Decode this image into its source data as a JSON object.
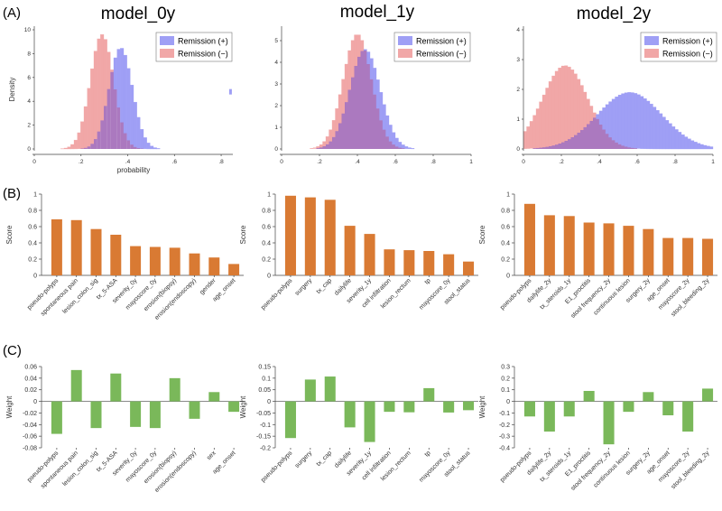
{
  "figure": {
    "row_labels": [
      "(A)",
      "(B)",
      "(C)"
    ],
    "model_titles": [
      "model_0y",
      "model_1y",
      "model_2y"
    ]
  },
  "colors": {
    "remission_pos": "#9f9ff5",
    "remission_neg": "#f1a7a7",
    "overlap": "#9c62b4",
    "score_bar": "#d97a33",
    "weight_bar": "#7ab85a",
    "extra_mark": "#9f9ff5"
  },
  "chart_data": [
    {
      "type": "histogram",
      "model": "model_0y",
      "row": "A",
      "xlabel": "probability",
      "ylabel": "Density",
      "xlim": [
        0,
        0.85
      ],
      "ylim": [
        0,
        10
      ],
      "xticks": [
        0,
        0.2,
        0.4,
        0.6,
        0.8
      ],
      "xtick_labels": [
        "0",
        ".2",
        ".4",
        ".6",
        ".8"
      ],
      "yticks": [
        0,
        2,
        4,
        6,
        8,
        10
      ],
      "legend": [
        "Remission (+)",
        "Remission (−)"
      ],
      "series": [
        {
          "name": "Remission (+)",
          "mean": 0.37,
          "sd": 0.05,
          "peak": 8.5
        },
        {
          "name": "Remission (−)",
          "mean": 0.29,
          "sd": 0.05,
          "peak": 9.6
        }
      ],
      "outlier": {
        "x": 0.84,
        "y": 4.8
      }
    },
    {
      "type": "histogram",
      "model": "model_1y",
      "row": "A",
      "xlabel": "",
      "ylabel": "",
      "xlim": [
        0,
        1
      ],
      "ylim": [
        0,
        5.5
      ],
      "xticks": [
        0,
        0.2,
        0.4,
        0.6,
        0.8,
        1
      ],
      "xtick_labels": [
        "0",
        ".2",
        ".4",
        ".6",
        ".8",
        "1"
      ],
      "yticks": [
        0,
        1,
        2,
        3,
        4,
        5
      ],
      "legend": [
        "Remission (+)",
        "Remission (−)"
      ],
      "series": [
        {
          "name": "Remission (+)",
          "mean": 0.44,
          "sd": 0.08,
          "peak": 4.6
        },
        {
          "name": "Remission (−)",
          "mean": 0.4,
          "sd": 0.075,
          "peak": 5.3
        }
      ]
    },
    {
      "type": "histogram",
      "model": "model_2y",
      "row": "A",
      "xlabel": "",
      "ylabel": "",
      "xlim": [
        0,
        1
      ],
      "ylim": [
        0,
        4
      ],
      "xticks": [
        0,
        0.2,
        0.4,
        0.6,
        0.8,
        1
      ],
      "xtick_labels": [
        "0",
        ".2",
        ".4",
        ".6",
        ".8",
        "1"
      ],
      "yticks": [
        0,
        1,
        2,
        3,
        4
      ],
      "legend": [
        "Remission (+)",
        "Remission (−)"
      ],
      "series": [
        {
          "name": "Remission (+)",
          "mean": 0.56,
          "sd": 0.17,
          "peak": 1.9
        },
        {
          "name": "Remission (−)",
          "mean": 0.22,
          "sd": 0.12,
          "peak": 2.8
        }
      ]
    },
    {
      "type": "bar",
      "model": "model_0y",
      "row": "B",
      "ylabel": "Score",
      "ylim": [
        0,
        1
      ],
      "yticks": [
        0,
        0.2,
        0.4,
        0.6,
        0.8,
        1
      ],
      "ytick_labels": [
        "0",
        "0.2",
        "0.4",
        "0.6",
        "0.8",
        "1"
      ],
      "categories": [
        "pseudo-polyps",
        "spontaneous pain",
        "lesion_colon_sig",
        "tx_5-ASA",
        "severity_0y",
        "mayoscore_0y",
        "erosion(biopsy)",
        "erosion(endoscopy)",
        "gender",
        "age_onset"
      ],
      "values": [
        0.69,
        0.68,
        0.57,
        0.5,
        0.36,
        0.35,
        0.34,
        0.27,
        0.22,
        0.14
      ]
    },
    {
      "type": "bar",
      "model": "model_1y",
      "row": "B",
      "ylabel": "Score",
      "ylim": [
        0,
        1
      ],
      "yticks": [
        0,
        0.2,
        0.4,
        0.6,
        0.8,
        1
      ],
      "ytick_labels": [
        "0",
        "0.2",
        "0.4",
        "0.6",
        "0.8",
        "1"
      ],
      "categories": [
        "pseudo-polyps",
        "surgery",
        "tx_cap",
        "dailylife",
        "severity_1y",
        "cell infiltration",
        "lesion_rectum",
        "tp",
        "mayoscore_0y",
        "stool_status"
      ],
      "values": [
        0.98,
        0.96,
        0.93,
        0.61,
        0.51,
        0.32,
        0.31,
        0.3,
        0.26,
        0.17
      ]
    },
    {
      "type": "bar",
      "model": "model_2y",
      "row": "B",
      "ylabel": "Score",
      "ylim": [
        0,
        1
      ],
      "yticks": [
        0,
        0.2,
        0.4,
        0.6,
        0.8,
        1
      ],
      "ytick_labels": [
        "0",
        "0.2",
        "0.4",
        "0.6",
        "0.8",
        "1"
      ],
      "categories": [
        "pseudo-polyps",
        "dailylife_2y",
        "tx_steroids_1y",
        "E1_proctitis",
        "stool frequency_2y",
        "continuous lesion",
        "surgery_2y",
        "age_onset",
        "mayoscore_2y",
        "stool_bleeding_2y"
      ],
      "values": [
        0.88,
        0.74,
        0.73,
        0.65,
        0.64,
        0.61,
        0.57,
        0.46,
        0.46,
        0.45
      ]
    },
    {
      "type": "bar",
      "model": "model_0y",
      "row": "C",
      "ylabel": "Weight",
      "ylim": [
        -0.08,
        0.06
      ],
      "yticks": [
        -0.08,
        -0.06,
        -0.04,
        -0.02,
        0,
        0.02,
        0.04,
        0.06
      ],
      "ytick_labels": [
        "-0.08",
        "-0.06",
        "-0.04",
        "-0.02",
        "0",
        "0.02",
        "0.04",
        "0.06"
      ],
      "categories": [
        "pseudo-polyps",
        "spontaneous pain",
        "lesion_colon_sig",
        "tx_5-ASA",
        "severity_0y",
        "mayoscore_0y",
        "erosion(biopsy)",
        "erosion(endoscopy)",
        "sex",
        "age_onset"
      ],
      "values": [
        -0.056,
        0.054,
        -0.046,
        0.048,
        -0.044,
        -0.046,
        0.04,
        -0.03,
        0.016,
        -0.018
      ]
    },
    {
      "type": "bar",
      "model": "model_1y",
      "row": "C",
      "ylabel": "Weight",
      "ylim": [
        -0.2,
        0.15
      ],
      "yticks": [
        -0.2,
        -0.15,
        -0.1,
        -0.05,
        0,
        0.05,
        0.1,
        0.15
      ],
      "ytick_labels": [
        "-0.2",
        "-0.15",
        "-0.1",
        "-0.05",
        "0",
        "0.05",
        "0.1",
        "0.15"
      ],
      "categories": [
        "pseudo-polyps",
        "surgery",
        "tx_cap",
        "dailylife",
        "severity_1y",
        "cell infiltration",
        "lesion_rectum",
        "tp",
        "mayoscore_0y",
        "stool_status"
      ],
      "values": [
        -0.158,
        0.094,
        0.107,
        -0.112,
        -0.175,
        -0.045,
        -0.047,
        0.057,
        -0.048,
        -0.038
      ]
    },
    {
      "type": "bar",
      "model": "model_2y",
      "row": "C",
      "ylabel": "Weight",
      "ylim": [
        -0.4,
        0.3
      ],
      "yticks": [
        -0.4,
        -0.3,
        -0.2,
        -0.1,
        0,
        0.1,
        0.2,
        0.3
      ],
      "ytick_labels": [
        "-0.4",
        "-0.3",
        "-0.2",
        "-0.1",
        "0",
        "0.1",
        "0.2",
        "0.3"
      ],
      "categories": [
        "pseudo-polyps",
        "dailylife_2y",
        "tx_steroids_1y",
        "E1_proctitis",
        "stool frequency_2y",
        "continuous lesion",
        "surgery_2y",
        "age_onset",
        "mayoscore_2y",
        "stool_bleeding_2y"
      ],
      "values": [
        -0.13,
        -0.26,
        -0.13,
        0.09,
        -0.37,
        -0.09,
        0.08,
        -0.12,
        -0.26,
        0.11
      ]
    }
  ]
}
